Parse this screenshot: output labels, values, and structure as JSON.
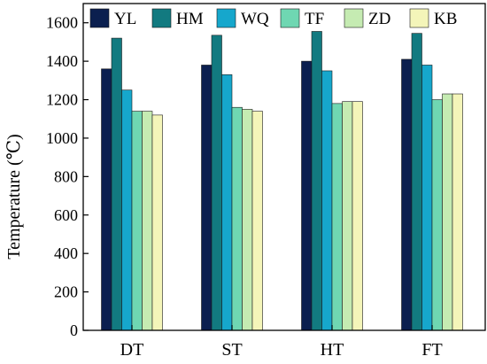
{
  "chart_data": {
    "type": "bar",
    "title": "",
    "xlabel": "",
    "ylabel": "Temperature (℃)",
    "ylim": [
      0,
      1700
    ],
    "yticks": [
      0,
      200,
      400,
      600,
      800,
      1000,
      1200,
      1400,
      1600
    ],
    "categories": [
      "DT",
      "ST",
      "HT",
      "FT"
    ],
    "grid": false,
    "legend_position": "top",
    "series": [
      {
        "name": "YL",
        "color": "#0b1f4f",
        "values": [
          1360,
          1380,
          1400,
          1410
        ]
      },
      {
        "name": "HM",
        "color": "#127a80",
        "values": [
          1520,
          1535,
          1555,
          1545
        ]
      },
      {
        "name": "WQ",
        "color": "#16a7cc",
        "values": [
          1250,
          1330,
          1350,
          1380
        ]
      },
      {
        "name": "TF",
        "color": "#6fd7b2",
        "values": [
          1140,
          1160,
          1180,
          1200
        ]
      },
      {
        "name": "ZD",
        "color": "#c5ebb2",
        "values": [
          1140,
          1150,
          1190,
          1230
        ]
      },
      {
        "name": "KB",
        "color": "#f4f5b9",
        "values": [
          1120,
          1140,
          1190,
          1230
        ]
      }
    ]
  }
}
